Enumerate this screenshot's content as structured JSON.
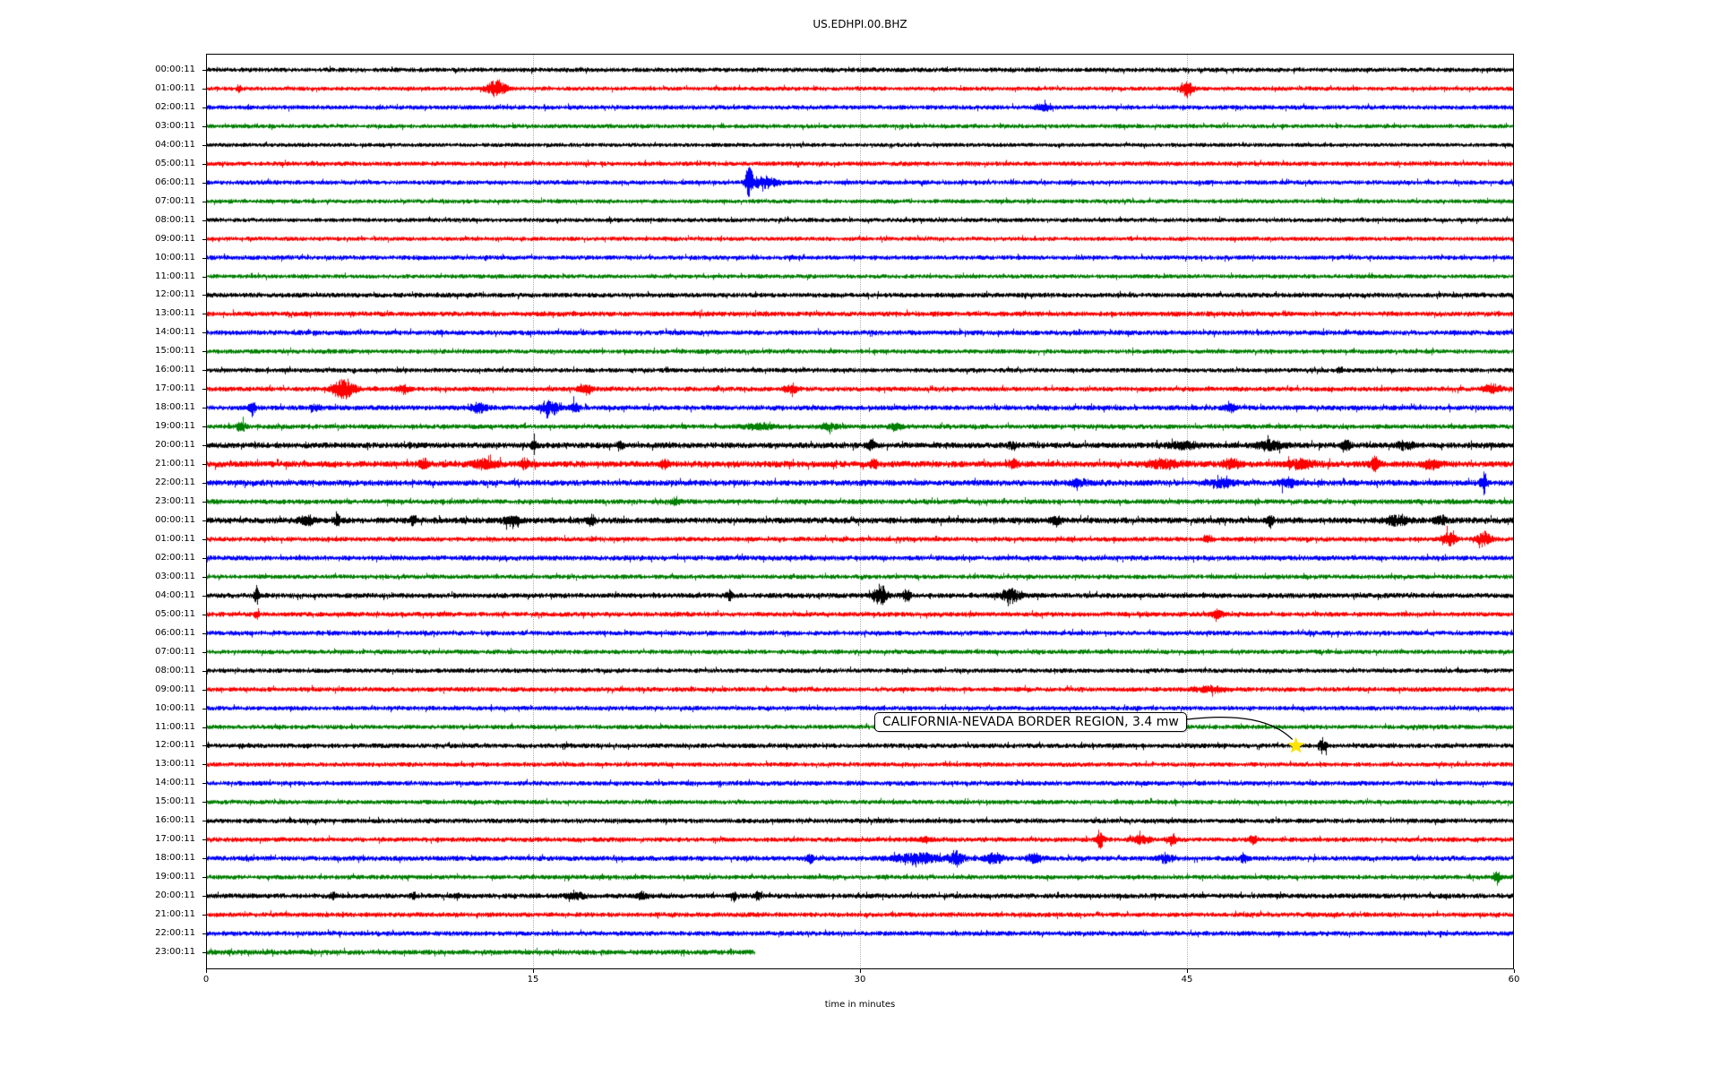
{
  "chart_data": {
    "type": "line",
    "subtype": "seismogram-helicorder",
    "title": "US.EDHPI.00.BHZ",
    "xlabel": "time in minutes",
    "xlim": [
      0,
      60
    ],
    "x_ticks": [
      0,
      15,
      30,
      45,
      60
    ],
    "grid_minutes": [
      15,
      30,
      45
    ],
    "grid_style": "dotted",
    "background_color": "#ffffff",
    "trace_color_cycle": [
      "#000000",
      "#ff0000",
      "#0000ff",
      "#008000"
    ],
    "rows": [
      {
        "label": "00:00:11",
        "color": "#000000",
        "noise": 1.8,
        "events": []
      },
      {
        "label": "01:00:11",
        "color": "#ff0000",
        "noise": 1.7,
        "events": [
          {
            "t": 1.5,
            "a": 3,
            "w": 0.2
          },
          {
            "t": 13.3,
            "a": 8,
            "w": 0.9
          },
          {
            "t": 45,
            "a": 8,
            "w": 0.5
          }
        ]
      },
      {
        "label": "02:00:11",
        "color": "#0000ff",
        "noise": 1.8,
        "events": [
          {
            "t": 38.4,
            "a": 3,
            "w": 0.6
          }
        ]
      },
      {
        "label": "03:00:11",
        "color": "#008000",
        "noise": 1.7,
        "events": []
      },
      {
        "label": "04:00:11",
        "color": "#000000",
        "noise": 1.6,
        "events": []
      },
      {
        "label": "05:00:11",
        "color": "#ff0000",
        "noise": 1.8,
        "events": []
      },
      {
        "label": "06:00:11",
        "color": "#0000ff",
        "noise": 1.8,
        "events": [
          {
            "t": 24.9,
            "a": 14,
            "w": 0.35
          },
          {
            "t": 25.6,
            "a": 5,
            "w": 1.2
          }
        ]
      },
      {
        "label": "07:00:11",
        "color": "#008000",
        "noise": 1.7,
        "events": []
      },
      {
        "label": "08:00:11",
        "color": "#000000",
        "noise": 1.7,
        "events": []
      },
      {
        "label": "09:00:11",
        "color": "#ff0000",
        "noise": 1.7,
        "events": []
      },
      {
        "label": "10:00:11",
        "color": "#0000ff",
        "noise": 1.8,
        "events": []
      },
      {
        "label": "11:00:11",
        "color": "#008000",
        "noise": 1.7,
        "events": []
      },
      {
        "label": "12:00:11",
        "color": "#000000",
        "noise": 1.9,
        "events": []
      },
      {
        "label": "13:00:11",
        "color": "#ff0000",
        "noise": 2.0,
        "events": []
      },
      {
        "label": "14:00:11",
        "color": "#0000ff",
        "noise": 2.0,
        "events": []
      },
      {
        "label": "15:00:11",
        "color": "#008000",
        "noise": 1.8,
        "events": []
      },
      {
        "label": "16:00:11",
        "color": "#000000",
        "noise": 1.8,
        "events": [
          {
            "t": 52,
            "a": 3,
            "w": 0.3
          }
        ]
      },
      {
        "label": "17:00:11",
        "color": "#ff0000",
        "noise": 1.9,
        "events": [
          {
            "t": 6.3,
            "a": 10,
            "w": 1.0
          },
          {
            "t": 9,
            "a": 4,
            "w": 0.5
          },
          {
            "t": 17.4,
            "a": 5,
            "w": 0.6
          },
          {
            "t": 26.8,
            "a": 5,
            "w": 0.6
          },
          {
            "t": 59,
            "a": 4,
            "w": 0.8
          }
        ]
      },
      {
        "label": "18:00:11",
        "color": "#0000ff",
        "noise": 2.0,
        "events": [
          {
            "t": 2.1,
            "a": 8,
            "w": 0.3
          },
          {
            "t": 5,
            "a": 3,
            "w": 0.5
          },
          {
            "t": 12.5,
            "a": 4,
            "w": 0.8
          },
          {
            "t": 15.8,
            "a": 6,
            "w": 0.9
          },
          {
            "t": 16.9,
            "a": 5,
            "w": 0.4
          },
          {
            "t": 47,
            "a": 3,
            "w": 0.6
          }
        ]
      },
      {
        "label": "19:00:11",
        "color": "#008000",
        "noise": 1.9,
        "events": [
          {
            "t": 1.6,
            "a": 4,
            "w": 0.4
          },
          {
            "t": 25.3,
            "a": 3,
            "w": 1.2
          },
          {
            "t": 28.6,
            "a": 3,
            "w": 0.9
          },
          {
            "t": 31.6,
            "a": 3,
            "w": 0.6
          }
        ]
      },
      {
        "label": "20:00:11",
        "color": "#000000",
        "noise": 2.3,
        "events": [
          {
            "t": 15,
            "a": 4,
            "w": 0.25
          },
          {
            "t": 19,
            "a": 4,
            "w": 0.25
          },
          {
            "t": 30.5,
            "a": 5,
            "w": 0.3
          },
          {
            "t": 37,
            "a": 3,
            "w": 0.4
          },
          {
            "t": 44.8,
            "a": 3,
            "w": 1.5
          },
          {
            "t": 48.8,
            "a": 4,
            "w": 1.2
          },
          {
            "t": 52.3,
            "a": 4,
            "w": 0.5
          },
          {
            "t": 55,
            "a": 3,
            "w": 0.8
          }
        ]
      },
      {
        "label": "21:00:11",
        "color": "#ff0000",
        "noise": 2.5,
        "events": [
          {
            "t": 10,
            "a": 4,
            "w": 0.5
          },
          {
            "t": 12.8,
            "a": 5,
            "w": 1.0
          },
          {
            "t": 14.6,
            "a": 4,
            "w": 0.4
          },
          {
            "t": 21,
            "a": 4,
            "w": 0.3
          },
          {
            "t": 30.6,
            "a": 5,
            "w": 0.3
          },
          {
            "t": 37,
            "a": 4,
            "w": 0.4
          },
          {
            "t": 44,
            "a": 4,
            "w": 1.5
          },
          {
            "t": 47,
            "a": 4,
            "w": 0.8
          },
          {
            "t": 50.2,
            "a": 4,
            "w": 1.2
          },
          {
            "t": 53.6,
            "a": 6,
            "w": 0.4
          },
          {
            "t": 56.2,
            "a": 4,
            "w": 0.8
          }
        ]
      },
      {
        "label": "22:00:11",
        "color": "#0000ff",
        "noise": 2.3,
        "events": [
          {
            "t": 40,
            "a": 3,
            "w": 0.8
          },
          {
            "t": 46.6,
            "a": 4,
            "w": 1.2
          },
          {
            "t": 49.6,
            "a": 4,
            "w": 0.8
          },
          {
            "t": 58.6,
            "a": 10,
            "w": 0.3
          }
        ]
      },
      {
        "label": "23:00:11",
        "color": "#008000",
        "noise": 2.0,
        "events": [
          {
            "t": 21.5,
            "a": 3,
            "w": 0.4
          }
        ]
      },
      {
        "label": "00:00:11",
        "color": "#000000",
        "noise": 2.4,
        "events": [
          {
            "t": 4.6,
            "a": 4,
            "w": 0.6
          },
          {
            "t": 6,
            "a": 5,
            "w": 0.25
          },
          {
            "t": 9.5,
            "a": 6,
            "w": 0.25
          },
          {
            "t": 14,
            "a": 4,
            "w": 0.8
          },
          {
            "t": 17.6,
            "a": 4,
            "w": 0.4
          },
          {
            "t": 39,
            "a": 4,
            "w": 0.4
          },
          {
            "t": 48.8,
            "a": 6,
            "w": 0.3
          },
          {
            "t": 54.6,
            "a": 5,
            "w": 1.0
          },
          {
            "t": 56.6,
            "a": 4,
            "w": 0.6
          }
        ]
      },
      {
        "label": "01:00:11",
        "color": "#ff0000",
        "noise": 1.9,
        "events": [
          {
            "t": 46,
            "a": 3,
            "w": 0.4
          },
          {
            "t": 57,
            "a": 6,
            "w": 0.6
          },
          {
            "t": 58.6,
            "a": 7,
            "w": 0.6
          }
        ]
      },
      {
        "label": "02:00:11",
        "color": "#0000ff",
        "noise": 2.0,
        "events": []
      },
      {
        "label": "03:00:11",
        "color": "#008000",
        "noise": 1.8,
        "events": []
      },
      {
        "label": "04:00:11",
        "color": "#000000",
        "noise": 2.0,
        "events": [
          {
            "t": 2.3,
            "a": 9,
            "w": 0.2
          },
          {
            "t": 24,
            "a": 4,
            "w": 0.3
          },
          {
            "t": 30.9,
            "a": 10,
            "w": 0.6
          },
          {
            "t": 32.1,
            "a": 5,
            "w": 0.4
          },
          {
            "t": 36.9,
            "a": 6,
            "w": 1.0
          }
        ]
      },
      {
        "label": "05:00:11",
        "color": "#ff0000",
        "noise": 1.9,
        "events": [
          {
            "t": 2.3,
            "a": 5,
            "w": 0.2
          },
          {
            "t": 46.4,
            "a": 4,
            "w": 0.5
          }
        ]
      },
      {
        "label": "06:00:11",
        "color": "#0000ff",
        "noise": 1.9,
        "events": []
      },
      {
        "label": "07:00:11",
        "color": "#008000",
        "noise": 1.8,
        "events": []
      },
      {
        "label": "08:00:11",
        "color": "#000000",
        "noise": 1.8,
        "events": []
      },
      {
        "label": "09:00:11",
        "color": "#ff0000",
        "noise": 1.9,
        "events": [
          {
            "t": 46,
            "a": 2.5,
            "w": 1.5
          }
        ]
      },
      {
        "label": "10:00:11",
        "color": "#0000ff",
        "noise": 1.8,
        "events": []
      },
      {
        "label": "11:00:11",
        "color": "#008000",
        "noise": 1.8,
        "events": []
      },
      {
        "label": "12:00:11",
        "color": "#000000",
        "noise": 1.9,
        "events": [
          {
            "t": 51.2,
            "a": 7,
            "w": 0.35
          }
        ]
      },
      {
        "label": "13:00:11",
        "color": "#ff0000",
        "noise": 1.8,
        "events": []
      },
      {
        "label": "14:00:11",
        "color": "#0000ff",
        "noise": 1.9,
        "events": []
      },
      {
        "label": "15:00:11",
        "color": "#008000",
        "noise": 1.8,
        "events": []
      },
      {
        "label": "16:00:11",
        "color": "#000000",
        "noise": 1.9,
        "events": []
      },
      {
        "label": "17:00:11",
        "color": "#ff0000",
        "noise": 1.9,
        "events": [
          {
            "t": 33,
            "a": 3,
            "w": 0.4
          },
          {
            "t": 41,
            "a": 9,
            "w": 0.3
          },
          {
            "t": 42.9,
            "a": 4,
            "w": 0.7
          },
          {
            "t": 44.3,
            "a": 5,
            "w": 0.4
          },
          {
            "t": 48,
            "a": 3,
            "w": 0.4
          }
        ]
      },
      {
        "label": "18:00:11",
        "color": "#0000ff",
        "noise": 2.0,
        "events": [
          {
            "t": 27.7,
            "a": 4,
            "w": 0.4
          },
          {
            "t": 32.6,
            "a": 5,
            "w": 2.0
          },
          {
            "t": 34.4,
            "a": 7,
            "w": 0.6
          },
          {
            "t": 36.1,
            "a": 5,
            "w": 0.8
          },
          {
            "t": 38,
            "a": 5,
            "w": 0.6
          },
          {
            "t": 44,
            "a": 4,
            "w": 0.7
          },
          {
            "t": 47.6,
            "a": 4,
            "w": 0.4
          }
        ]
      },
      {
        "label": "19:00:11",
        "color": "#008000",
        "noise": 1.8,
        "events": [
          {
            "t": 59.2,
            "a": 5,
            "w": 0.4
          }
        ]
      },
      {
        "label": "20:00:11",
        "color": "#000000",
        "noise": 2.0,
        "events": [
          {
            "t": 5.8,
            "a": 4,
            "w": 0.25
          },
          {
            "t": 9.5,
            "a": 4,
            "w": 0.25
          },
          {
            "t": 11.5,
            "a": 3,
            "w": 0.25
          },
          {
            "t": 17,
            "a": 3,
            "w": 0.8
          },
          {
            "t": 20,
            "a": 3,
            "w": 0.4
          },
          {
            "t": 24.2,
            "a": 4,
            "w": 0.25
          },
          {
            "t": 25.3,
            "a": 4,
            "w": 0.25
          }
        ]
      },
      {
        "label": "21:00:11",
        "color": "#ff0000",
        "noise": 1.9,
        "events": []
      },
      {
        "label": "22:00:11",
        "color": "#0000ff",
        "noise": 1.9,
        "events": []
      },
      {
        "label": "23:00:11",
        "color": "#008000",
        "noise": 2.0,
        "events": [],
        "end_minute": 25.2
      }
    ],
    "annotation": {
      "text": "CALIFORNIA-NEVADA BORDER REGION, 3.4 mw",
      "row_index": 36,
      "row_label": "12:00:11",
      "minute": 50.0,
      "marker": "star",
      "marker_color": "#ffe400",
      "box_x": 976,
      "box_y": 795
    }
  }
}
